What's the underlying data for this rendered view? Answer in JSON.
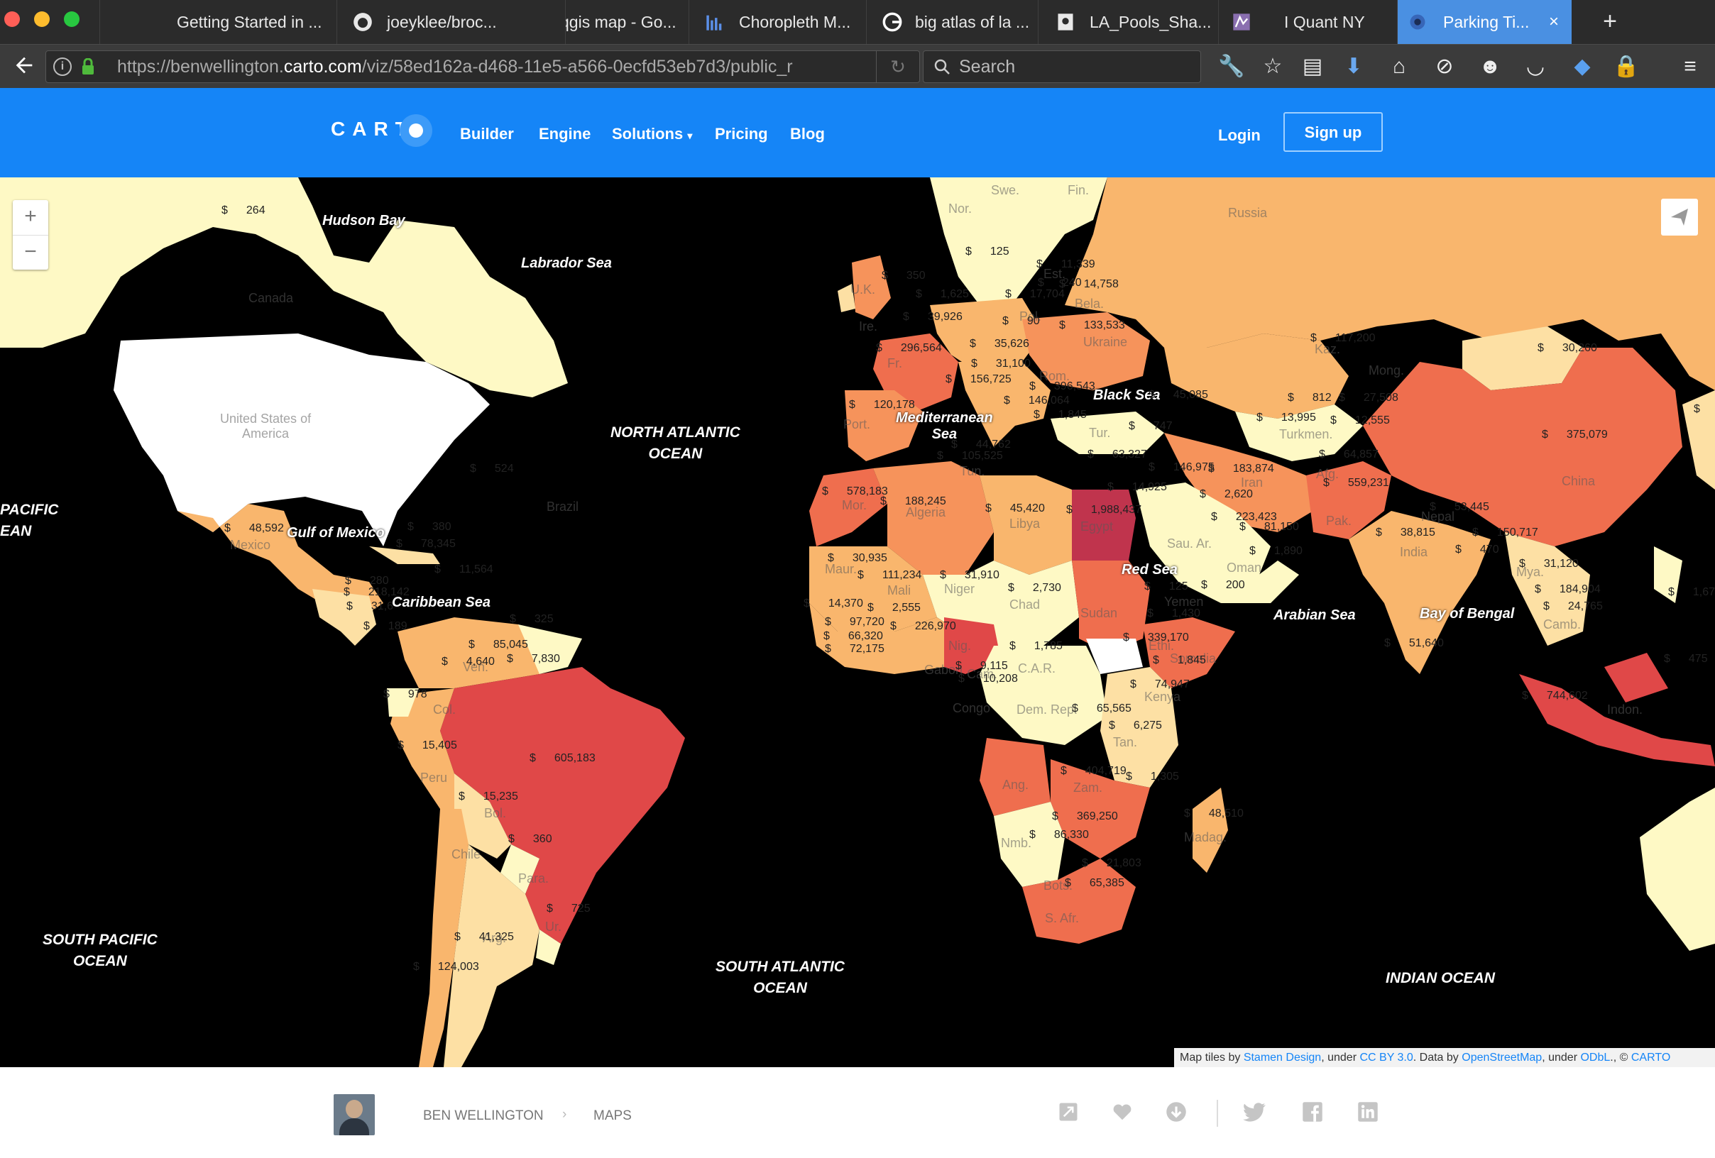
{
  "browser": {
    "tabs": [
      {
        "label": "Getting Started in ...",
        "icon": "page-icon"
      },
      {
        "label": "joeyklee/broc...",
        "icon": "github-icon"
      },
      {
        "label": "qgis map - Go...",
        "icon": "google-icon"
      },
      {
        "label": "Choropleth M...",
        "icon": "chart-icon"
      },
      {
        "label": "big atlas of la ...",
        "icon": "google-icon"
      },
      {
        "label": "LA_Pools_Sha...",
        "icon": "page-icon"
      },
      {
        "label": "I Quant NY",
        "icon": "iquantny-icon"
      },
      {
        "label": "Parking Ti...",
        "icon": "carto-icon"
      }
    ],
    "new_tab": "+",
    "close_tab": "×",
    "url_prefix": "https://benwellington.",
    "url_host": "carto.com",
    "url_path": "/viz/58ed162a-d468-11e5-a566-0ecfd53eb7d3/public_r",
    "search_placeholder": "Search"
  },
  "header": {
    "logo": "CART",
    "nav": [
      "Builder",
      "Engine",
      "Solutions",
      "Pricing",
      "Blog"
    ],
    "solutions_caret": "▾",
    "login": "Login",
    "signup": "Sign up"
  },
  "map": {
    "zoom_in": "+",
    "zoom_out": "−",
    "oceans": [
      "NORTH ATLANTIC\nOCEAN",
      "SOUTH ATLANTIC\nOCEAN",
      "SOUTH PACIFIC\nOCEAN",
      "INDIAN OCEAN",
      "PACIFIC\nEAN"
    ],
    "places": [
      "Hudson Bay",
      "Labrador Sea",
      "Gulf of Mexico",
      "Caribbean Sea",
      "Mediterranean\nSea",
      "Black Sea",
      "Red Sea",
      "Arabian Sea",
      "Bay of Bengal"
    ],
    "ghost_labels": [
      "Canada",
      "United States of\nAmerica",
      "Russia",
      "China",
      "Brazil",
      "Egypt",
      "Algeria",
      "Libya",
      "Sudan",
      "India",
      "Kaz.",
      "Mong.",
      "Iran",
      "Sau. Ar.",
      "Mexico",
      "Niger",
      "Chad",
      "Mali",
      "Peru",
      "Bol.",
      "Arg.",
      "Col.",
      "Ven.",
      "Ang.",
      "Zam.",
      "Nmb.",
      "Bots.",
      "S. Afr.",
      "Madag.",
      "Ethi.",
      "Kenya",
      "Tan.",
      "Dem. Rep.",
      "Ukraine",
      "Tur.",
      "Indon.",
      "Pak.",
      "Afg.",
      "Turkmen.",
      "Somalia",
      "Yemen",
      "Oman",
      "Mor.",
      "Maur.",
      "Fr.",
      "Port.",
      "Pol.",
      "Bela.",
      "Rom.",
      "Para.",
      "Ur.",
      "Chile",
      "Nig.",
      "Camb.",
      "Mya.",
      "Nepal",
      "Tun.",
      "C.A.R.",
      "Congo",
      "Gabon",
      "Cam.",
      "Nor.",
      "Swe.",
      "Fin.",
      "Est.",
      "U.K.",
      "Ire."
    ],
    "values": [
      "264",
      "524",
      "48,592",
      "380",
      "78,345",
      "11,564",
      "280",
      "218,142",
      "31,6",
      "189",
      "325",
      "4,640",
      "85,045",
      "7,830",
      "978",
      "15,405",
      "605,183",
      "15,235",
      "360",
      "725",
      "41,325",
      "124,003",
      "350",
      "125",
      "1,625",
      "17,704",
      "11,339",
      "240",
      "14,758",
      "39,926",
      "296,564",
      "35,626",
      "90",
      "133,533",
      "31,100",
      "156,725",
      "396,543",
      "146,064",
      "1,845",
      "120,178",
      "44,762",
      "105,525",
      "63,327",
      "747",
      "45,085",
      "812",
      "27,508",
      "13,995",
      "12,555",
      "117,200",
      "30,260",
      "375,079",
      "578,183",
      "188,245",
      "45,420",
      "1,988,437",
      "14,925",
      "146,975",
      "183,874",
      "64,857",
      "559,231",
      "2,620",
      "53,445",
      "223,423",
      "81,150",
      "38,815",
      "150,717",
      "470",
      "30,935",
      "111,234",
      "31,910",
      "2,730",
      "1,890",
      "200",
      "31,120",
      "14,370",
      "2,555",
      "226,970",
      "125",
      "1,430",
      "97,720",
      "66,320",
      "72,175",
      "1,785",
      "339,170",
      "1,845",
      "184,904",
      "24,765",
      "9,115",
      "10,208",
      "74,947",
      "65,565",
      "6,275",
      "404,719",
      "1,305",
      "369,250",
      "48,510",
      "86,330",
      "21,803",
      "65,385",
      "51,640",
      "744,602",
      "475",
      "1,677",
      "1"
    ],
    "attribution": {
      "t1": "Map tiles by ",
      "l1": "Stamen Design",
      "t2": ", under ",
      "l2": "CC BY 3.0",
      "t3": ". Data by ",
      "l3": "OpenStreetMap",
      "t4": ", under ",
      "l4": "ODbL",
      "t5": "., © ",
      "l5": "CARTO"
    },
    "colors": {
      "ocean": "#000000",
      "lightest": "#fef9c5",
      "light": "#fde0a4",
      "mid": "#f9b66d",
      "orange": "#f6935b",
      "red_orange": "#ef6e4e",
      "red": "#e04848",
      "darkest": "#c0344d",
      "nodata": "#ffffff"
    }
  },
  "footer": {
    "author": "BEN WELLINGTON",
    "separator": "›",
    "section": "MAPS"
  }
}
